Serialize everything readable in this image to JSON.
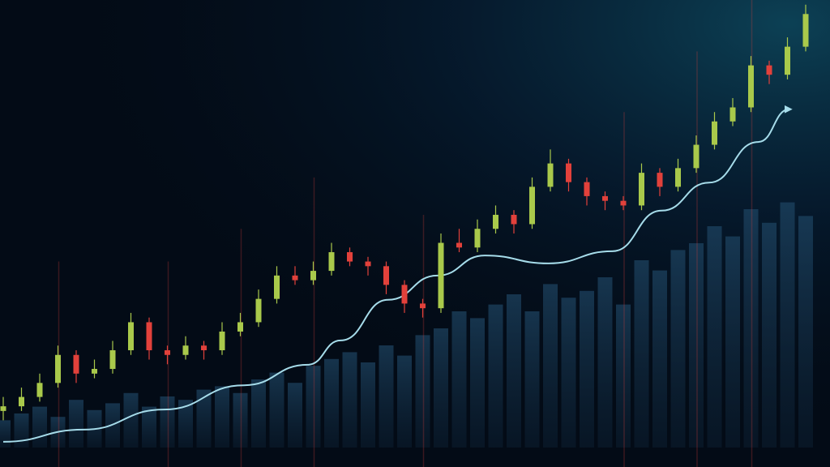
{
  "chart_data": {
    "type": "candlestick",
    "title": "",
    "xlabel": "",
    "ylabel": "",
    "grid": false,
    "legend": "none",
    "ylim": [
      0,
      100
    ],
    "candles_ohlc": [
      [
        12,
        15,
        10,
        13
      ],
      [
        13,
        17,
        12,
        15
      ],
      [
        15,
        20,
        14,
        18
      ],
      [
        18,
        26,
        17,
        24
      ],
      [
        24,
        25,
        18,
        20
      ],
      [
        20,
        23,
        19,
        21
      ],
      [
        21,
        27,
        20,
        25
      ],
      [
        25,
        33,
        24,
        31
      ],
      [
        31,
        32,
        23,
        25
      ],
      [
        25,
        26,
        22,
        24
      ],
      [
        24,
        28,
        23,
        26
      ],
      [
        26,
        27,
        23,
        25
      ],
      [
        25,
        31,
        24,
        29
      ],
      [
        29,
        33,
        28,
        31
      ],
      [
        31,
        38,
        30,
        36
      ],
      [
        36,
        43,
        35,
        41
      ],
      [
        41,
        43,
        39,
        40
      ],
      [
        40,
        44,
        39,
        42
      ],
      [
        42,
        48,
        41,
        46
      ],
      [
        46,
        47,
        43,
        44
      ],
      [
        44,
        45,
        41,
        43
      ],
      [
        43,
        44,
        37,
        39
      ],
      [
        39,
        40,
        33,
        35
      ],
      [
        35,
        36,
        32,
        34
      ],
      [
        34,
        50,
        33,
        48
      ],
      [
        48,
        51,
        46,
        47
      ],
      [
        47,
        53,
        46,
        51
      ],
      [
        51,
        56,
        50,
        54
      ],
      [
        54,
        55,
        50,
        52
      ],
      [
        52,
        62,
        51,
        60
      ],
      [
        60,
        68,
        59,
        65
      ],
      [
        65,
        66,
        59,
        61
      ],
      [
        61,
        62,
        56,
        58
      ],
      [
        58,
        59,
        55,
        57
      ],
      [
        57,
        58,
        55,
        56
      ],
      [
        56,
        65,
        55,
        63
      ],
      [
        63,
        64,
        58,
        60
      ],
      [
        60,
        66,
        59,
        64
      ],
      [
        64,
        71,
        63,
        69
      ],
      [
        69,
        76,
        68,
        74
      ],
      [
        74,
        79,
        73,
        77
      ],
      [
        77,
        88,
        76,
        86
      ],
      [
        86,
        87,
        82,
        84
      ],
      [
        84,
        92,
        83,
        90
      ],
      [
        90,
        99,
        89,
        97
      ]
    ],
    "volume": [
      8,
      10,
      12,
      9,
      14,
      11,
      13,
      16,
      12,
      15,
      14,
      17,
      18,
      16,
      20,
      22,
      19,
      24,
      26,
      28,
      25,
      30,
      27,
      33,
      35,
      40,
      38,
      42,
      45,
      40,
      48,
      44,
      46,
      50,
      42,
      55,
      52,
      58,
      60,
      65,
      62,
      70,
      66,
      72,
      68
    ],
    "trend_line": [
      [
        0,
        5.4
      ],
      [
        4.4,
        8
      ],
      [
        8.8,
        12.3
      ],
      [
        13.2,
        17.5
      ],
      [
        16.7,
        21.9
      ],
      [
        18.5,
        27.1
      ],
      [
        21.1,
        35.8
      ],
      [
        23.8,
        41
      ],
      [
        26.4,
        45.3
      ],
      [
        29.9,
        43.6
      ],
      [
        33.4,
        46.2
      ],
      [
        36.1,
        54.9
      ],
      [
        38.7,
        60.9
      ],
      [
        41.4,
        69.6
      ],
      [
        43.1,
        76.6
      ]
    ],
    "colors": {
      "background": "#030b16",
      "glow": "#0e4a60",
      "up": "#a9c94b",
      "down": "#e2413b",
      "volume": "#1b3a55",
      "trend": "#a6dcea"
    }
  }
}
